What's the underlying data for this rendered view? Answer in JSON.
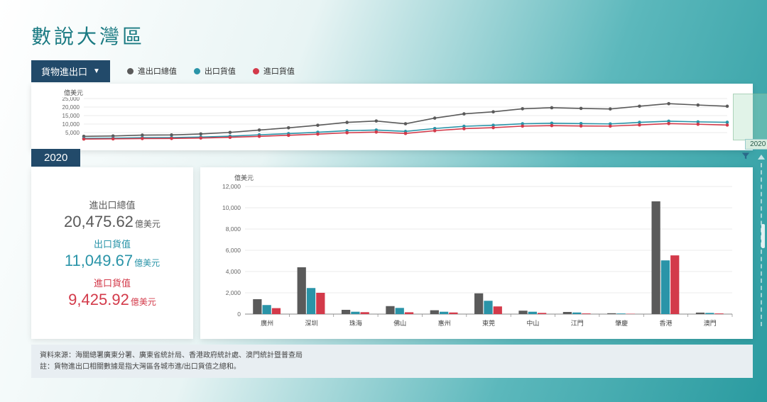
{
  "title": "數說大灣區",
  "selector_label": "貨物進出口",
  "legend": [
    {
      "label": "進出口總值",
      "color": "#5a5a5a"
    },
    {
      "label": "出口貨值",
      "color": "#2a94a8"
    },
    {
      "label": "進口貨值",
      "color": "#d33a4a"
    }
  ],
  "timeline": {
    "y_unit": "億美元",
    "ylim": [
      0,
      25000
    ],
    "yticks": [
      5000,
      10000,
      15000,
      20000,
      25000
    ],
    "years": [
      1998,
      1999,
      2000,
      2001,
      2002,
      2003,
      2004,
      2005,
      2006,
      2007,
      2008,
      2009,
      2010,
      2011,
      2012,
      2013,
      2014,
      2015,
      2016,
      2017,
      2018,
      2019,
      2020
    ],
    "series": {
      "total": [
        2800,
        3000,
        3500,
        3600,
        4200,
        5100,
        6500,
        7800,
        9300,
        11000,
        11800,
        10200,
        13500,
        16000,
        17200,
        19000,
        19600,
        19200,
        18900,
        20500,
        22000,
        21200,
        20476
      ],
      "export": [
        1600,
        1700,
        2000,
        2050,
        2400,
        2900,
        3700,
        4400,
        5200,
        6100,
        6500,
        5700,
        7400,
        8700,
        9300,
        10200,
        10500,
        10300,
        10100,
        11000,
        11700,
        11300,
        11050
      ],
      "import": [
        1200,
        1300,
        1500,
        1550,
        1800,
        2200,
        2800,
        3400,
        4100,
        4900,
        5300,
        4500,
        6100,
        7300,
        7900,
        8800,
        9100,
        8900,
        8800,
        9500,
        10300,
        9900,
        9426
      ]
    },
    "highlight_year": 2020,
    "background_color": "#ffffff",
    "grid_color": "#e4e4e4",
    "line_width": 1.6,
    "marker_radius": 2.3
  },
  "selected_year": "2020",
  "stats": [
    {
      "label": "進出口總值",
      "value": "20,475.62",
      "unit": "億美元",
      "color": "#5a5a5a"
    },
    {
      "label": "出口貨值",
      "value": "11,049.67",
      "unit": "億美元",
      "color": "#2a94a8"
    },
    {
      "label": "進口貨值",
      "value": "9,425.92",
      "unit": "億美元",
      "color": "#d33a4a"
    }
  ],
  "barchart": {
    "y_unit": "億美元",
    "ylim": [
      0,
      12000
    ],
    "ytick_step": 2000,
    "categories": [
      "廣州",
      "深圳",
      "珠海",
      "佛山",
      "惠州",
      "東莞",
      "中山",
      "江門",
      "肇慶",
      "香港",
      "澳門"
    ],
    "series": {
      "total": [
        1400,
        4400,
        400,
        750,
        360,
        1950,
        320,
        200,
        80,
        10600,
        140
      ],
      "export": [
        850,
        2450,
        220,
        580,
        220,
        1250,
        220,
        150,
        55,
        5050,
        110
      ],
      "import": [
        560,
        2000,
        180,
        170,
        150,
        720,
        110,
        60,
        30,
        5520,
        60
      ]
    },
    "colors": {
      "total": "#5a5a5a",
      "export": "#2a94a8",
      "import": "#d33a4a"
    },
    "background_color": "#ffffff",
    "grid_color": "#e4e4e4",
    "bar_group_width": 0.64,
    "label_fontsize": 9
  },
  "footer": {
    "source": "資料來源：海關總署廣東分署、廣東省統計局、香港政府統計處、澳門統計暨普查局",
    "note": "註：貨物進出口相關數據是指大灣區各城市進/出口貨值之總和。"
  }
}
